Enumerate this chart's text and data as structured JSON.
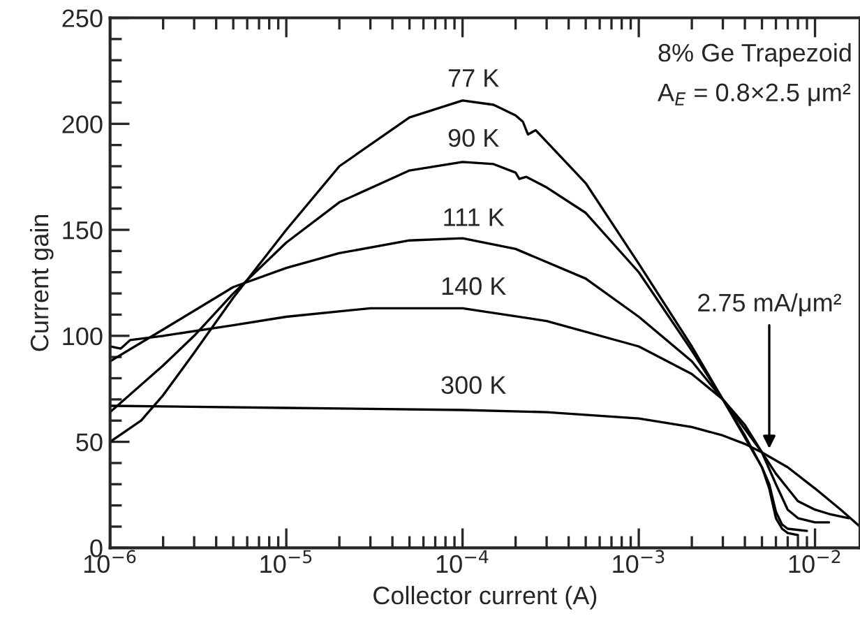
{
  "chart_data": {
    "type": "line",
    "xlabel": "Collector current (A)",
    "ylabel": "Current gain",
    "log": "x",
    "xlim": [
      1e-06,
      0.018
    ],
    "ylim": [
      0,
      250
    ],
    "xticks": [
      {
        "value": 1e-06,
        "label": "10$^{−6}$"
      },
      {
        "value": 1e-05,
        "label": "10$^{−5}$"
      },
      {
        "value": 0.0001,
        "label": "10$^{−4}$"
      },
      {
        "value": 0.001,
        "label": "10$^{−3}$"
      },
      {
        "value": 0.01,
        "label": "10$^{−2}$"
      }
    ],
    "yticks": [
      0,
      50,
      100,
      150,
      200,
      250
    ],
    "grid": false,
    "legend": false,
    "marker": "none",
    "line_style": "solid",
    "series": [
      {
        "name": "77 K",
        "color": "#000000",
        "x": [
          1e-06,
          1.5e-06,
          2e-06,
          3e-06,
          5e-06,
          1e-05,
          2e-05,
          5e-05,
          0.0001,
          0.00015,
          0.0002,
          0.00022,
          0.000235,
          0.00026,
          0.0005,
          0.001,
          0.002,
          0.003,
          0.004,
          0.005,
          0.0055,
          0.006,
          0.0065,
          0.007,
          0.008
        ],
        "values": [
          50,
          60,
          72,
          92,
          118,
          150,
          180,
          203,
          211,
          209,
          204,
          201,
          195,
          197,
          172,
          134,
          95,
          70,
          53,
          38,
          28,
          14,
          9,
          7,
          6
        ]
      },
      {
        "name": "90 K",
        "color": "#000000",
        "x": [
          1e-06,
          2e-06,
          3e-06,
          5e-06,
          1e-05,
          2e-05,
          5e-05,
          0.0001,
          0.00015,
          0.0002,
          0.00021,
          0.00023,
          0.0003,
          0.0005,
          0.001,
          0.002,
          0.003,
          0.004,
          0.005,
          0.0055,
          0.006,
          0.0065,
          0.007,
          0.009
        ],
        "values": [
          64,
          86,
          100,
          120,
          144,
          163,
          178,
          182,
          181,
          177,
          174,
          175,
          170,
          158,
          130,
          93,
          70,
          52,
          38,
          30,
          17,
          11,
          9,
          8
        ]
      },
      {
        "name": "111 K",
        "color": "#000000",
        "x": [
          1e-06,
          2e-06,
          5e-06,
          1e-05,
          2e-05,
          5e-05,
          0.0001,
          0.0002,
          0.0005,
          0.001,
          0.002,
          0.003,
          0.004,
          0.005,
          0.006,
          0.007,
          0.008,
          0.01,
          0.012
        ],
        "values": [
          88,
          103,
          123,
          132,
          139,
          145,
          146,
          141,
          127,
          109,
          88,
          70,
          58,
          45,
          30,
          18,
          14,
          12,
          12
        ]
      },
      {
        "name": "140 K",
        "color": "#000000",
        "x": [
          1e-06,
          1.15e-06,
          1.3e-06,
          2e-06,
          5e-06,
          1e-05,
          3e-05,
          0.0001,
          0.0003,
          0.001,
          0.002,
          0.003,
          0.004,
          0.005,
          0.006,
          0.007,
          0.008,
          0.01,
          0.012,
          0.0155
        ],
        "values": [
          95,
          94,
          98,
          100,
          105,
          109,
          113,
          113,
          107,
          95,
          82,
          70,
          56,
          45,
          35,
          28,
          22,
          18,
          16,
          14
        ]
      },
      {
        "name": "300 K",
        "color": "#000000",
        "x": [
          1e-06,
          1e-05,
          0.0001,
          0.0003,
          0.001,
          0.002,
          0.003,
          0.004,
          0.005,
          0.007,
          0.01,
          0.014,
          0.018
        ],
        "values": [
          67,
          66,
          65,
          64,
          61,
          57,
          53,
          49,
          45,
          38,
          28,
          18,
          10
        ]
      }
    ],
    "annotations": [
      "8% Ge Trapezoid",
      "A$_{E}$ = 0.8×2.5 μm²",
      {
        "text": "2.75 mA/μm²",
        "x": 0.0055,
        "y": 45
      }
    ]
  }
}
